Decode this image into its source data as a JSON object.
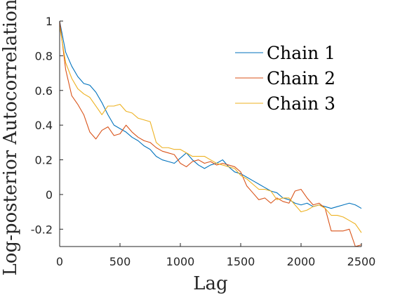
{
  "chart_data": {
    "type": "line",
    "title": "",
    "xlabel": "Lag",
    "ylabel": "Log-posterior Autocorrelation",
    "xlim": [
      0,
      2500
    ],
    "ylim": [
      -0.3,
      1.0
    ],
    "xticks": [
      0,
      500,
      1000,
      1500,
      2000,
      2500
    ],
    "yticks": [
      -0.2,
      0,
      0.2,
      0.4,
      0.6,
      0.8,
      1
    ],
    "xtick_labels": [
      "0",
      "500",
      "1000",
      "1500",
      "2000",
      "2500"
    ],
    "ytick_labels": [
      "-0.2",
      "0",
      "0.2",
      "0.4",
      "0.6",
      "0.8",
      "1"
    ],
    "grid": false,
    "legend": "top-right",
    "series": [
      {
        "name": "Chain 1",
        "color": "#0072BD",
        "x": [
          0,
          50,
          100,
          150,
          200,
          250,
          300,
          350,
          400,
          450,
          500,
          550,
          600,
          650,
          700,
          750,
          800,
          850,
          900,
          950,
          1000,
          1050,
          1100,
          1150,
          1200,
          1250,
          1300,
          1350,
          1400,
          1450,
          1500,
          1550,
          1600,
          1650,
          1700,
          1750,
          1800,
          1850,
          1900,
          1950,
          2000,
          2050,
          2100,
          2150,
          2200,
          2250,
          2300,
          2350,
          2400,
          2450,
          2500
        ],
        "y": [
          1.0,
          0.82,
          0.74,
          0.68,
          0.64,
          0.63,
          0.59,
          0.53,
          0.46,
          0.4,
          0.38,
          0.36,
          0.33,
          0.31,
          0.28,
          0.26,
          0.22,
          0.2,
          0.19,
          0.18,
          0.21,
          0.24,
          0.2,
          0.17,
          0.15,
          0.17,
          0.18,
          0.2,
          0.16,
          0.13,
          0.12,
          0.1,
          0.08,
          0.06,
          0.04,
          0.02,
          0.01,
          -0.02,
          -0.03,
          -0.05,
          -0.06,
          -0.05,
          -0.07,
          -0.06,
          -0.07,
          -0.08,
          -0.07,
          -0.06,
          -0.05,
          -0.06,
          -0.08
        ]
      },
      {
        "name": "Chain 2",
        "color": "#D95319",
        "x": [
          0,
          50,
          100,
          150,
          200,
          250,
          300,
          350,
          400,
          450,
          500,
          550,
          600,
          650,
          700,
          750,
          800,
          850,
          900,
          950,
          1000,
          1050,
          1100,
          1150,
          1200,
          1250,
          1300,
          1350,
          1400,
          1450,
          1500,
          1550,
          1600,
          1650,
          1700,
          1750,
          1800,
          1850,
          1900,
          1950,
          2000,
          2050,
          2100,
          2150,
          2200,
          2250,
          2300,
          2350,
          2400,
          2450,
          2500
        ],
        "y": [
          1.0,
          0.72,
          0.57,
          0.52,
          0.46,
          0.36,
          0.32,
          0.37,
          0.39,
          0.34,
          0.35,
          0.4,
          0.36,
          0.33,
          0.31,
          0.3,
          0.27,
          0.25,
          0.24,
          0.23,
          0.18,
          0.16,
          0.19,
          0.2,
          0.18,
          0.19,
          0.17,
          0.18,
          0.17,
          0.16,
          0.13,
          0.05,
          0.01,
          -0.03,
          -0.02,
          -0.05,
          -0.02,
          -0.04,
          -0.05,
          0.02,
          0.03,
          -0.02,
          -0.06,
          -0.05,
          -0.08,
          -0.21,
          -0.21,
          -0.21,
          -0.2,
          -0.3,
          -0.29
        ]
      },
      {
        "name": "Chain 3",
        "color": "#EDB120",
        "x": [
          0,
          50,
          100,
          150,
          200,
          250,
          300,
          350,
          400,
          450,
          500,
          550,
          600,
          650,
          700,
          750,
          800,
          850,
          900,
          950,
          1000,
          1050,
          1100,
          1150,
          1200,
          1250,
          1300,
          1350,
          1400,
          1450,
          1500,
          1550,
          1600,
          1650,
          1700,
          1750,
          1800,
          1850,
          1900,
          1950,
          2000,
          2050,
          2100,
          2150,
          2200,
          2250,
          2300,
          2350,
          2400,
          2450,
          2500
        ],
        "y": [
          0.97,
          0.76,
          0.67,
          0.61,
          0.58,
          0.56,
          0.51,
          0.46,
          0.51,
          0.51,
          0.52,
          0.48,
          0.47,
          0.44,
          0.43,
          0.42,
          0.3,
          0.27,
          0.27,
          0.26,
          0.26,
          0.24,
          0.22,
          0.22,
          0.22,
          0.2,
          0.18,
          0.17,
          0.16,
          0.15,
          0.11,
          0.09,
          0.06,
          0.03,
          0.03,
          0.02,
          -0.03,
          -0.02,
          -0.02,
          -0.06,
          -0.1,
          -0.09,
          -0.07,
          -0.06,
          -0.08,
          -0.12,
          -0.12,
          -0.13,
          -0.15,
          -0.17,
          -0.22
        ]
      }
    ]
  }
}
